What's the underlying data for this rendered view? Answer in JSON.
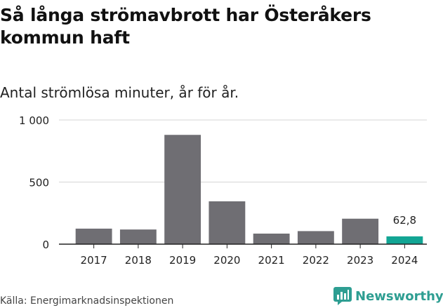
{
  "header": {
    "title": "Så långa strömavbrott har Österåkers kommun haft",
    "subtitle": "Antal strömlösa minuter, år för år."
  },
  "footer": {
    "source": "Källa: Energimarknadsinspektionen",
    "brand": "Newsworthy"
  },
  "colors": {
    "bar": "#6f6e73",
    "highlight": "#12a594",
    "grid": "#d6d6d6",
    "axis": "#222222",
    "brand": "#2e9e92"
  },
  "chart_data": {
    "type": "bar",
    "categories": [
      "2017",
      "2018",
      "2019",
      "2020",
      "2021",
      "2022",
      "2023",
      "2024"
    ],
    "values": [
      125,
      118,
      880,
      345,
      85,
      105,
      205,
      62.8
    ],
    "ylim": [
      0,
      1000
    ],
    "yticks": [
      {
        "value": 0,
        "label": "0"
      },
      {
        "value": 500,
        "label": "500"
      },
      {
        "value": 1000,
        "label": "1 000"
      }
    ],
    "highlight_index": 7,
    "annotation": {
      "index": 7,
      "label": "62,8"
    },
    "grid": true
  }
}
